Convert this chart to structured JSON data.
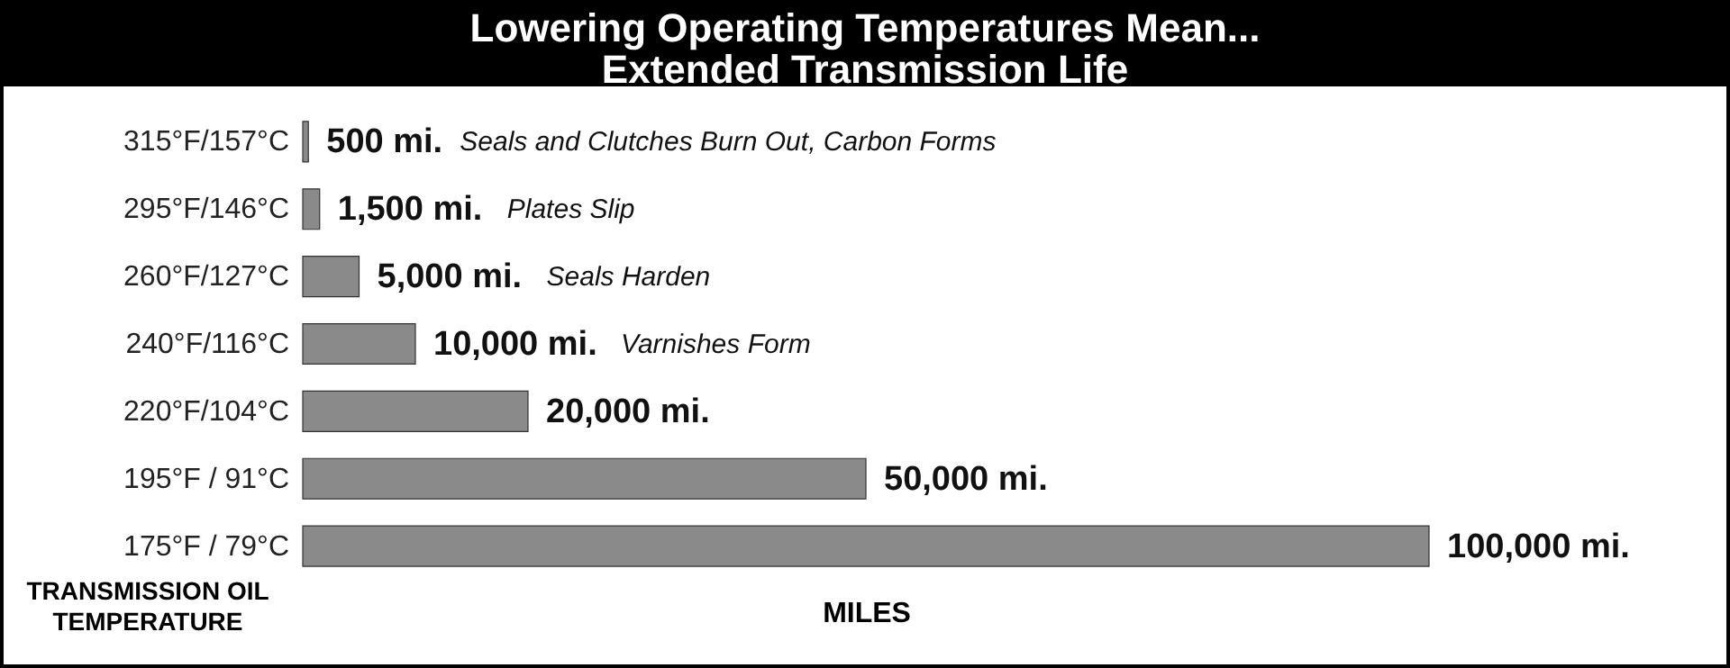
{
  "chart_data": {
    "type": "bar",
    "orientation": "horizontal",
    "title": "Lowering Operating Temperatures Mean...\nExtended Transmission Life",
    "xlabel": "MILES",
    "ylabel": "TRANSMISSION OIL TEMPERATURE",
    "categories": [
      "315°F/157°C",
      "295°F/146°C",
      "260°F/127°C",
      "240°F/116°C",
      "220°F/104°C",
      "195°F / 91°C",
      "175°F / 79°C"
    ],
    "values": [
      500,
      1500,
      5000,
      10000,
      20000,
      50000,
      100000
    ],
    "value_labels": [
      "500 mi.",
      "1,500 mi.",
      "5,000 mi.",
      "10,000 mi.",
      "20,000 mi.",
      "50,000 mi.",
      "100,000 mi."
    ],
    "color": "#8a8a8a",
    "xlim": [
      0,
      100000
    ],
    "annotations": [
      "Seals and Clutches Burn Out, Carbon Forms",
      "Plates Slip",
      "Seals Harden",
      "Varnishes Form"
    ]
  }
}
